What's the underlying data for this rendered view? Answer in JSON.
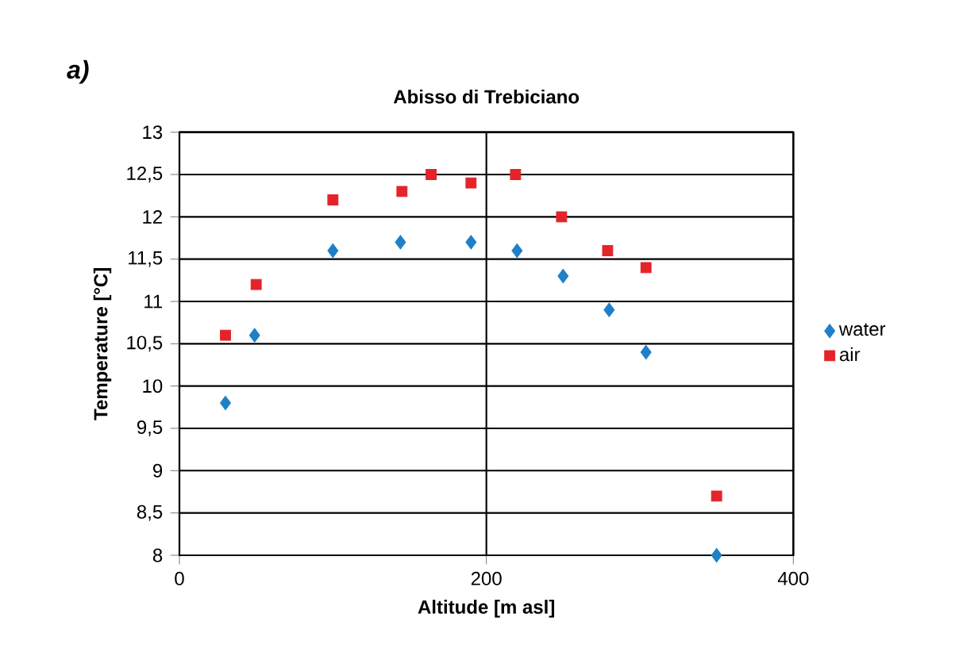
{
  "chart_data": {
    "type": "scatter",
    "title": "Abisso di Trebiciano",
    "xlabel": "Altitude [m asl]",
    "ylabel": "Temperature [°C]",
    "annotations": [
      "a)"
    ],
    "xlim": [
      0,
      400
    ],
    "xticks": [
      0,
      200,
      400
    ],
    "ylim": [
      8,
      13
    ],
    "yticks": [
      {
        "value": 8,
        "label": "8"
      },
      {
        "value": 8.5,
        "label": "8,5"
      },
      {
        "value": 9,
        "label": "9"
      },
      {
        "value": 9.5,
        "label": "9,5"
      },
      {
        "value": 10,
        "label": "10"
      },
      {
        "value": 10.5,
        "label": "10,5"
      },
      {
        "value": 11,
        "label": "11"
      },
      {
        "value": 11.5,
        "label": "11,5"
      },
      {
        "value": 12,
        "label": "12"
      },
      {
        "value": 12.5,
        "label": "12,5"
      },
      {
        "value": 13,
        "label": "13"
      }
    ],
    "grid": true,
    "legend": "right",
    "series": [
      {
        "name": "water",
        "color": "#1f7fc7",
        "marker": "diamond",
        "x": [
          30,
          49,
          100,
          144,
          190,
          220,
          250,
          280,
          304,
          350
        ],
        "values": [
          9.8,
          10.6,
          11.6,
          11.7,
          11.7,
          11.6,
          11.3,
          10.9,
          10.4,
          8.0
        ]
      },
      {
        "name": "air",
        "color": "#e3242b",
        "marker": "square",
        "x": [
          30,
          50,
          100,
          145,
          164,
          190,
          219,
          249,
          279,
          304,
          350
        ],
        "values": [
          10.6,
          11.2,
          12.2,
          12.3,
          12.5,
          12.4,
          12.5,
          12.0,
          11.6,
          11.4,
          8.7
        ]
      }
    ]
  }
}
